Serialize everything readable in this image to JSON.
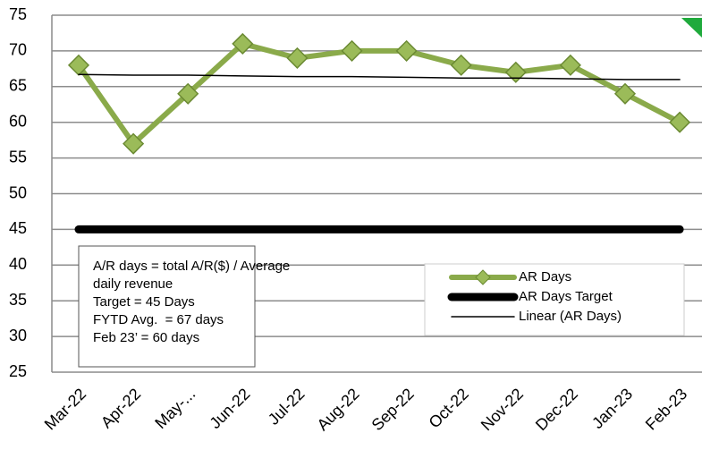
{
  "chart_data": {
    "type": "line",
    "categories": [
      "Mar-22",
      "Apr-22",
      "May-...",
      "Jun-22",
      "Jul-22",
      "Aug-22",
      "Sep-22",
      "Oct-22",
      "Nov-22",
      "Dec-22",
      "Jan-23",
      "Feb-23"
    ],
    "series": [
      {
        "name": "AR Days",
        "color": "#8aaa4a",
        "values": [
          68,
          57,
          64,
          71,
          69,
          70,
          70,
          68,
          67,
          68,
          64,
          60
        ]
      },
      {
        "name": "AR Days Target",
        "color": "#000000",
        "values": [
          45,
          45,
          45,
          45,
          45,
          45,
          45,
          45,
          45,
          45,
          45,
          45
        ]
      },
      {
        "name": "Linear (AR Days)",
        "color": "#000000",
        "values": [
          66.7,
          66.6,
          66.6,
          66.5,
          66.4,
          66.4,
          66.3,
          66.2,
          66.2,
          66.1,
          66.0,
          66.0
        ]
      }
    ],
    "ylim": [
      25,
      75
    ],
    "yticks": [
      25,
      30,
      35,
      40,
      45,
      50,
      55,
      60,
      65,
      70,
      75
    ],
    "grid": true,
    "annotation": [
      "A/R days = total A/R($) / Average",
      "daily revenue",
      "Target = 45 Days",
      "FYTD Avg.  = 67 days",
      "Feb 23’ = 60 days"
    ]
  }
}
